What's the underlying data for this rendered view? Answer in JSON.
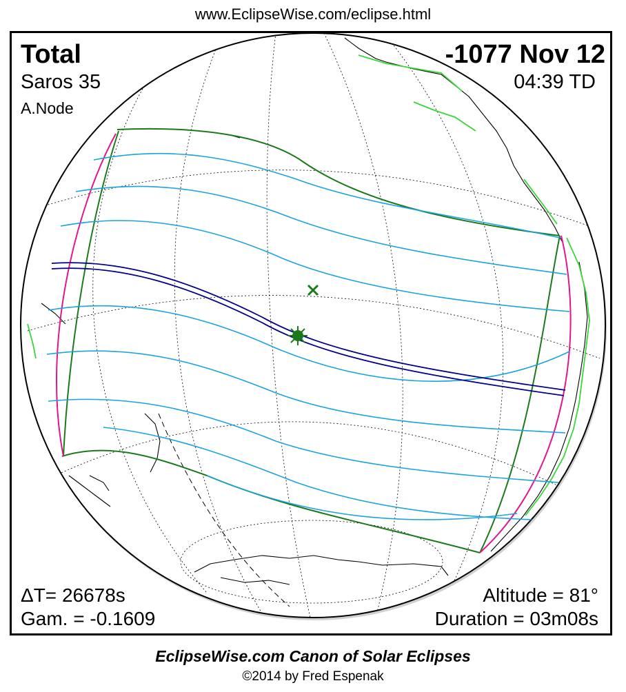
{
  "header": {
    "url": "www.EclipseWise.com/eclipse.html"
  },
  "eclipse": {
    "type": "Total",
    "date": "-1077 Nov 12",
    "saros": "Saros  35",
    "time": "04:39 TD",
    "node": "A.Node",
    "delta_t": "ΔT=  26678s",
    "gamma": "Gam. = -0.1609",
    "altitude": "Altitude = 81°",
    "duration": "Duration = 03m08s"
  },
  "colors": {
    "path_of_totality": "#00008b",
    "penumbral_limits": "#1a7a1a",
    "rise_set_curves": "#e0168f",
    "partial_lines": "#19a3e0",
    "coastlines": "#000000",
    "coastline_highlight": "#39d639",
    "graticule": "#000000"
  },
  "markers": [
    {
      "name": "greatest-eclipse-point",
      "symbol": "sun-star"
    },
    {
      "name": "sub-solar-point",
      "symbol": "x-mark"
    }
  ],
  "footer": {
    "line1": "EclipseWise.com Canon of Solar Eclipses",
    "line2": "©2014 by Fred Espenak"
  }
}
